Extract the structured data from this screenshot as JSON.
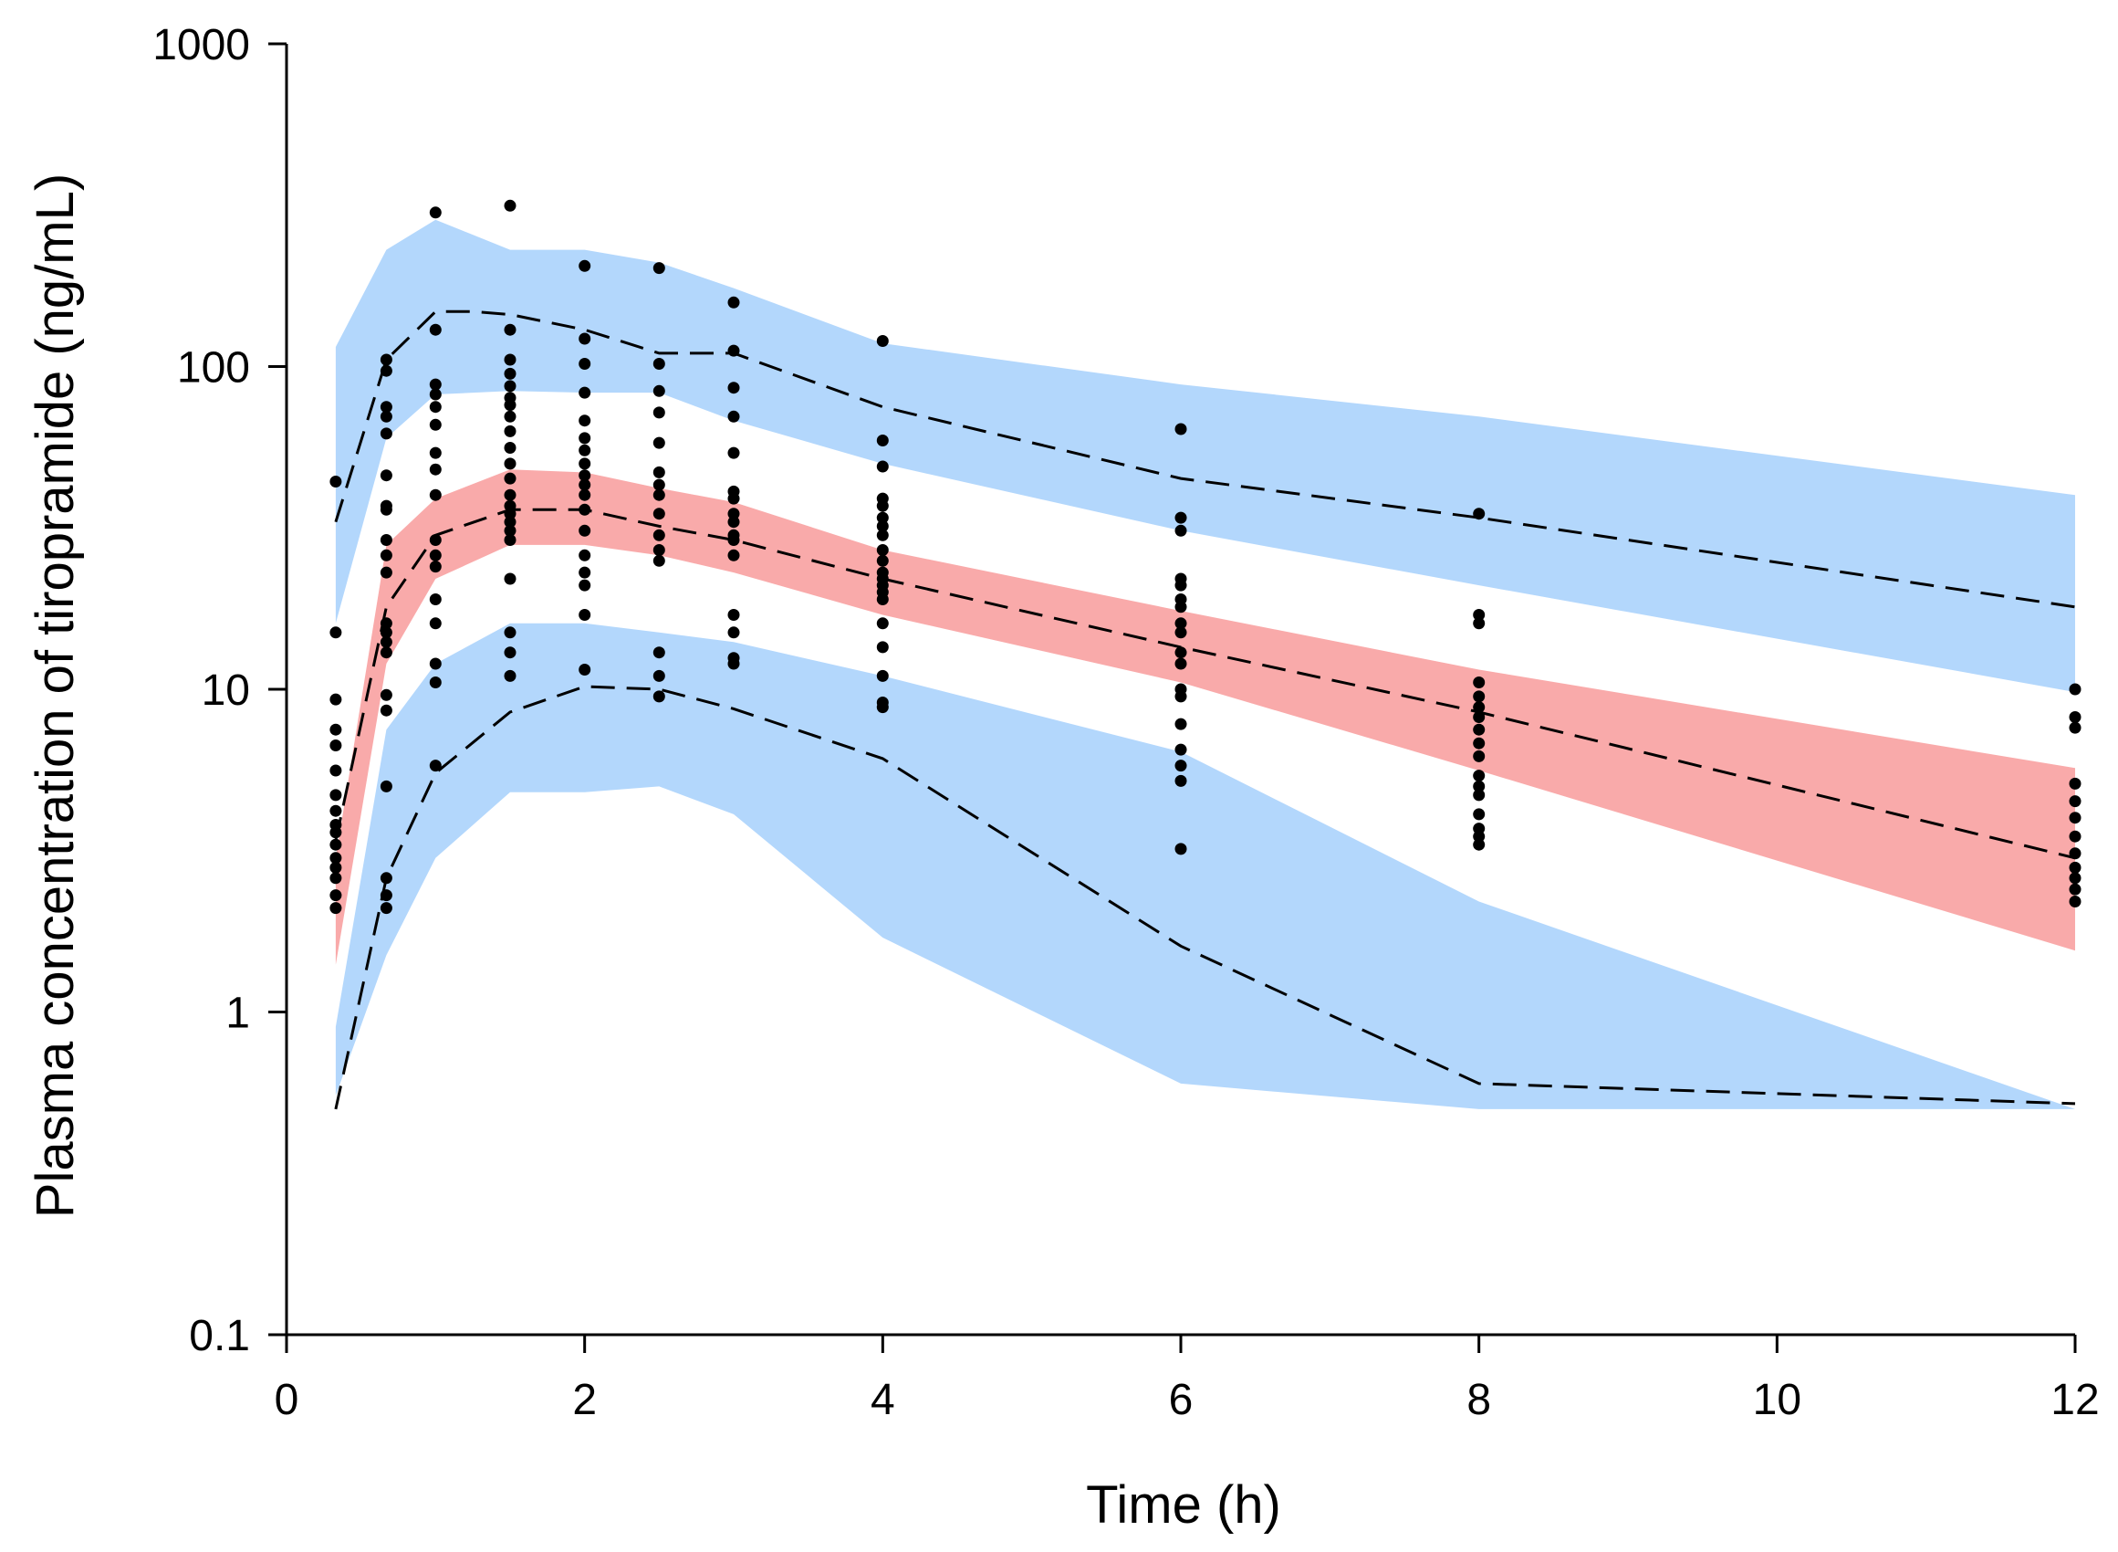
{
  "chart_data": {
    "type": "line",
    "title": "",
    "xlabel": "Time (h)",
    "ylabel": "Plasma concentration of tiropramide (ng/mL)",
    "xlim": [
      0,
      12
    ],
    "ylim": [
      0.1,
      1000
    ],
    "yscale": "log",
    "grid": false,
    "x_ticks": [
      0,
      2,
      4,
      6,
      8,
      10,
      12
    ],
    "x_tick_labels": [
      "0",
      "2",
      "4",
      "6",
      "8",
      "10",
      "12"
    ],
    "y_ticks": [
      0.1,
      1,
      10,
      100,
      1000
    ],
    "y_tick_labels": [
      "0.1",
      "1",
      "10",
      "100",
      "1000"
    ],
    "colors": {
      "outer_band": "#b3d7fc",
      "median_band": "#f9aaaa",
      "lines": "#000000",
      "points": "#000000"
    },
    "bands": [
      {
        "color": "#b3d7fc",
        "x": [
          0.33,
          0.67,
          1,
          1.5,
          2,
          2.5,
          3,
          4,
          6,
          8,
          12
        ],
        "lower": [
          16,
          60,
          82,
          84,
          83,
          83,
          68,
          50,
          31,
          21,
          9.8
        ],
        "upper": [
          115,
          230,
          285,
          230,
          230,
          210,
          175,
          118,
          88,
          70,
          40
        ]
      },
      {
        "color": "#f9aaaa",
        "x": [
          0.33,
          0.67,
          1,
          1.5,
          2,
          2.5,
          3,
          4,
          6,
          8,
          12
        ],
        "lower": [
          1.4,
          12,
          22,
          28,
          28,
          26,
          23,
          17,
          10.5,
          5.6,
          1.55
        ],
        "upper": [
          3.0,
          28,
          39,
          48,
          47,
          42,
          38,
          27,
          17.5,
          11.5,
          5.7
        ]
      },
      {
        "color": "#b3d7fc",
        "x": [
          0.33,
          0.67,
          1,
          1.5,
          2,
          2.5,
          3,
          4,
          6,
          8,
          12
        ],
        "lower": [
          0.55,
          1.5,
          3.0,
          4.8,
          4.8,
          5.0,
          4.1,
          1.7,
          0.6,
          0.5,
          0.5
        ],
        "upper": [
          0.9,
          7.5,
          12,
          16,
          16,
          15,
          14,
          11,
          6.4,
          2.2,
          0.5
        ]
      }
    ],
    "series": [
      {
        "x": [
          0.33,
          0.67,
          1,
          1.25,
          1.5,
          2,
          2.5,
          2.75,
          3,
          4,
          6,
          8,
          12
        ],
        "values": [
          33,
          105,
          148,
          148,
          145,
          130,
          110,
          110,
          110,
          75,
          45,
          34,
          18
        ]
      },
      {
        "x": [
          0.33,
          0.67,
          1,
          1.5,
          2,
          2.5,
          3,
          4,
          6,
          8,
          12
        ],
        "values": [
          3.4,
          18,
          30,
          36,
          36,
          32,
          29,
          22,
          13.5,
          8.5,
          3.0
        ]
      },
      {
        "x": [
          0.33,
          0.67,
          1,
          1.5,
          2,
          2.5,
          3,
          4,
          6,
          8,
          12
        ],
        "values": [
          0.5,
          2.6,
          5.5,
          8.5,
          10.2,
          10,
          8.7,
          6.1,
          1.6,
          0.6,
          0.52
        ]
      }
    ],
    "observed": [
      {
        "x": 0.33,
        "values": [
          44,
          15,
          9.3,
          7.5,
          6.7,
          5.6,
          4.7,
          4.2,
          3.8,
          3.6,
          3.3,
          3.0,
          2.8,
          2.6,
          2.3,
          2.1
        ]
      },
      {
        "x": 0.67,
        "values": [
          105,
          97,
          75,
          70,
          62,
          46,
          37,
          36,
          29,
          26,
          23,
          16,
          15,
          14,
          13,
          9.6,
          8.6,
          5,
          2.6,
          2.3,
          2.1
        ]
      },
      {
        "x": 1,
        "values": [
          300,
          130,
          88,
          82,
          75,
          66,
          54,
          48,
          40,
          29,
          26,
          24,
          19,
          16,
          12,
          10.5,
          5.8
        ]
      },
      {
        "x": 1.5,
        "values": [
          315,
          130,
          105,
          95,
          87,
          80,
          76,
          70,
          63,
          56,
          50,
          45,
          40,
          37,
          35,
          33,
          31,
          29,
          22,
          15,
          13,
          11
        ]
      },
      {
        "x": 2,
        "values": [
          205,
          122,
          102,
          83,
          68,
          60,
          55,
          50,
          46,
          43,
          40,
          36,
          31,
          26,
          23,
          21,
          17,
          11.5
        ]
      },
      {
        "x": 2.5,
        "values": [
          202,
          102,
          84,
          72,
          58,
          47,
          43,
          40,
          35,
          30,
          27,
          25,
          13,
          11,
          9.5
        ]
      },
      {
        "x": 3,
        "values": [
          158,
          112,
          86,
          70,
          54,
          41,
          39,
          35,
          33,
          30,
          29,
          26,
          17,
          15,
          12.5,
          12
        ]
      },
      {
        "x": 4,
        "values": [
          120,
          59,
          49,
          39,
          37,
          34,
          32,
          30,
          27,
          25,
          23,
          22,
          21,
          20,
          19,
          16,
          13.5,
          11,
          9.1,
          8.8
        ]
      },
      {
        "x": 6,
        "values": [
          64,
          34,
          31,
          22,
          21,
          19,
          18,
          16,
          15,
          13,
          12,
          10,
          9.5,
          7.8,
          6.5,
          5.8,
          5.2,
          3.2
        ]
      },
      {
        "x": 8,
        "values": [
          35,
          17,
          16,
          10.5,
          9.5,
          8.8,
          8.2,
          7.5,
          6.8,
          6.2,
          5.4,
          5.0,
          4.7,
          4.1,
          3.7,
          3.5,
          3.3
        ]
      },
      {
        "x": 12,
        "values": [
          10,
          8.2,
          7.6,
          5.1,
          4.5,
          4.0,
          3.5,
          3.1,
          2.8,
          2.6,
          2.4,
          2.2
        ]
      }
    ]
  }
}
